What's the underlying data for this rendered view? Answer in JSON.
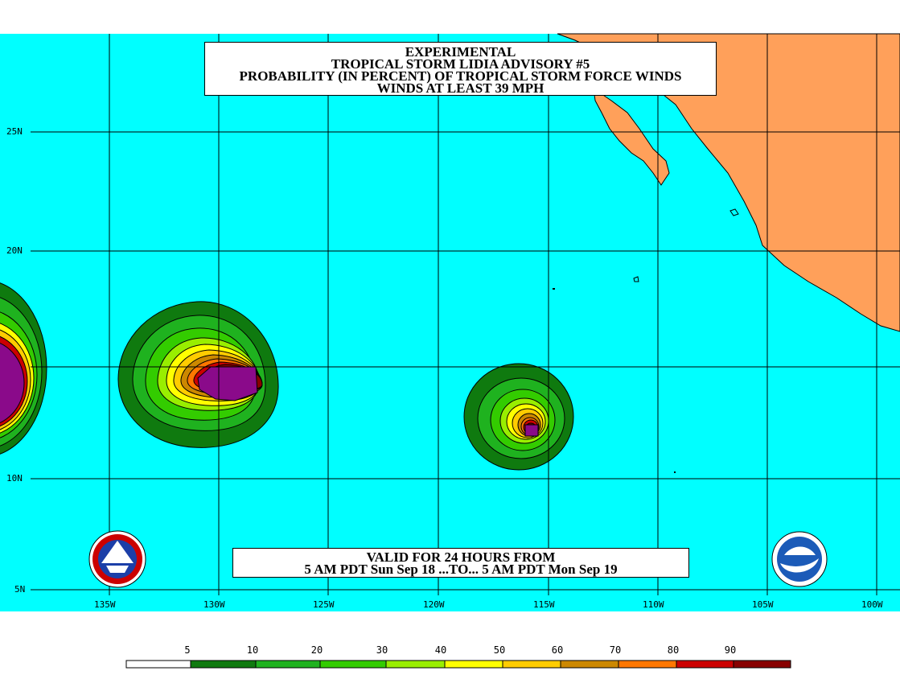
{
  "title": {
    "line1": "EXPERIMENTAL",
    "line2": "TROPICAL STORM LIDIA ADVISORY #5",
    "line3": "PROBABILITY (IN PERCENT) OF TROPICAL STORM FORCE WINDS",
    "line4": "WINDS AT LEAST 39 MPH"
  },
  "valid": {
    "line1": "VALID FOR 24 HOURS FROM",
    "line2": "5 AM PDT Sun Sep 18 ...TO... 5 AM PDT Mon Sep 19"
  },
  "axes": {
    "latitudes": [
      "25N",
      "20N",
      "10N",
      "5N"
    ],
    "longitudes": [
      "135W",
      "130W",
      "125W",
      "120W",
      "115W",
      "110W",
      "105W",
      "100W"
    ]
  },
  "legend": {
    "labels": [
      "5",
      "10",
      "20",
      "30",
      "40",
      "50",
      "60",
      "70",
      "80",
      "90"
    ],
    "colors": [
      "#ffffff",
      "#0f7a0f",
      "#1fb21f",
      "#33cc00",
      "#99ee00",
      "#ffff00",
      "#ffcc00",
      "#cc8800",
      "#ff7700",
      "#cc0000",
      "#880000",
      "#8a0a8a"
    ]
  },
  "colors": {
    "ocean": "#00ffff",
    "land": "#ffa05a",
    "grid": "#000000"
  },
  "logos": {
    "left": "nws-logo-icon",
    "right": "noaa-logo-icon"
  }
}
